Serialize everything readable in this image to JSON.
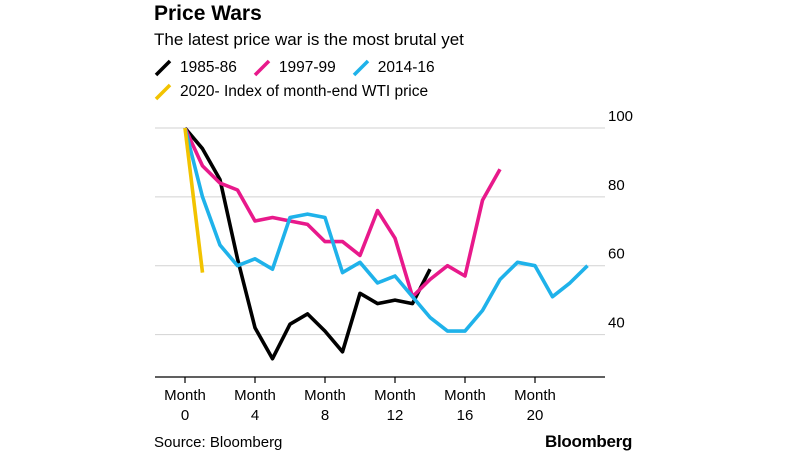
{
  "header": {
    "title": "Price Wars",
    "subtitle": "The latest price war is the most brutal yet"
  },
  "legend": [
    {
      "label": "1985-86",
      "color": "#000000"
    },
    {
      "label": "1997-99",
      "color": "#e8198b"
    },
    {
      "label": "2014-16",
      "color": "#1fb2ea"
    },
    {
      "label": "2020- Index of month-end WTI price",
      "color": "#f2c300"
    }
  ],
  "footer": {
    "source": "Source: Bloomberg",
    "brand": "Bloomberg"
  },
  "chart_data": {
    "type": "line",
    "title": "Price Wars",
    "subtitle": "The latest price war is the most brutal yet",
    "xlabel": "",
    "ylabel": "",
    "xlim": [
      0,
      24
    ],
    "ylim": [
      30,
      100
    ],
    "y_axis_side": "right",
    "x_ticks": [
      {
        "value": 0,
        "line1": "Month",
        "line2": "0"
      },
      {
        "value": 4,
        "line1": "Month",
        "line2": "4"
      },
      {
        "value": 8,
        "line1": "Month",
        "line2": "8"
      },
      {
        "value": 12,
        "line1": "Month",
        "line2": "12"
      },
      {
        "value": 16,
        "line1": "Month",
        "line2": "16"
      },
      {
        "value": 20,
        "line1": "Month",
        "line2": "20"
      }
    ],
    "y_ticks": [
      40,
      60,
      80,
      100
    ],
    "series": [
      {
        "name": "1985-86",
        "color": "#000000",
        "x": [
          0,
          1,
          2,
          3,
          4,
          5,
          6,
          7,
          8,
          9,
          10,
          11,
          12,
          13,
          14
        ],
        "y": [
          100,
          94,
          85,
          62,
          42,
          33,
          43,
          46,
          41,
          35,
          52,
          49,
          50,
          49,
          59
        ]
      },
      {
        "name": "1997-99",
        "color": "#e8198b",
        "x": [
          0,
          1,
          2,
          3,
          4,
          5,
          6,
          7,
          8,
          9,
          10,
          11,
          12,
          13,
          14,
          15,
          16,
          17,
          18
        ],
        "y": [
          100,
          89,
          84,
          82,
          73,
          74,
          73,
          72,
          67,
          67,
          63,
          76,
          68,
          51,
          56,
          60,
          57,
          79,
          88
        ]
      },
      {
        "name": "2014-16",
        "color": "#1fb2ea",
        "x": [
          0,
          1,
          2,
          3,
          4,
          5,
          6,
          7,
          8,
          9,
          10,
          11,
          12,
          13,
          14,
          15,
          16,
          17,
          18,
          19,
          20,
          21,
          22,
          23
        ],
        "y": [
          100,
          80,
          66,
          60,
          62,
          59,
          74,
          75,
          74,
          58,
          61,
          55,
          57,
          51,
          45,
          41,
          41,
          47,
          56,
          61,
          60,
          51,
          55,
          60
        ]
      },
      {
        "name": "2020-",
        "color": "#f2c300",
        "x": [
          0,
          1
        ],
        "y": [
          100,
          58
        ]
      }
    ]
  }
}
